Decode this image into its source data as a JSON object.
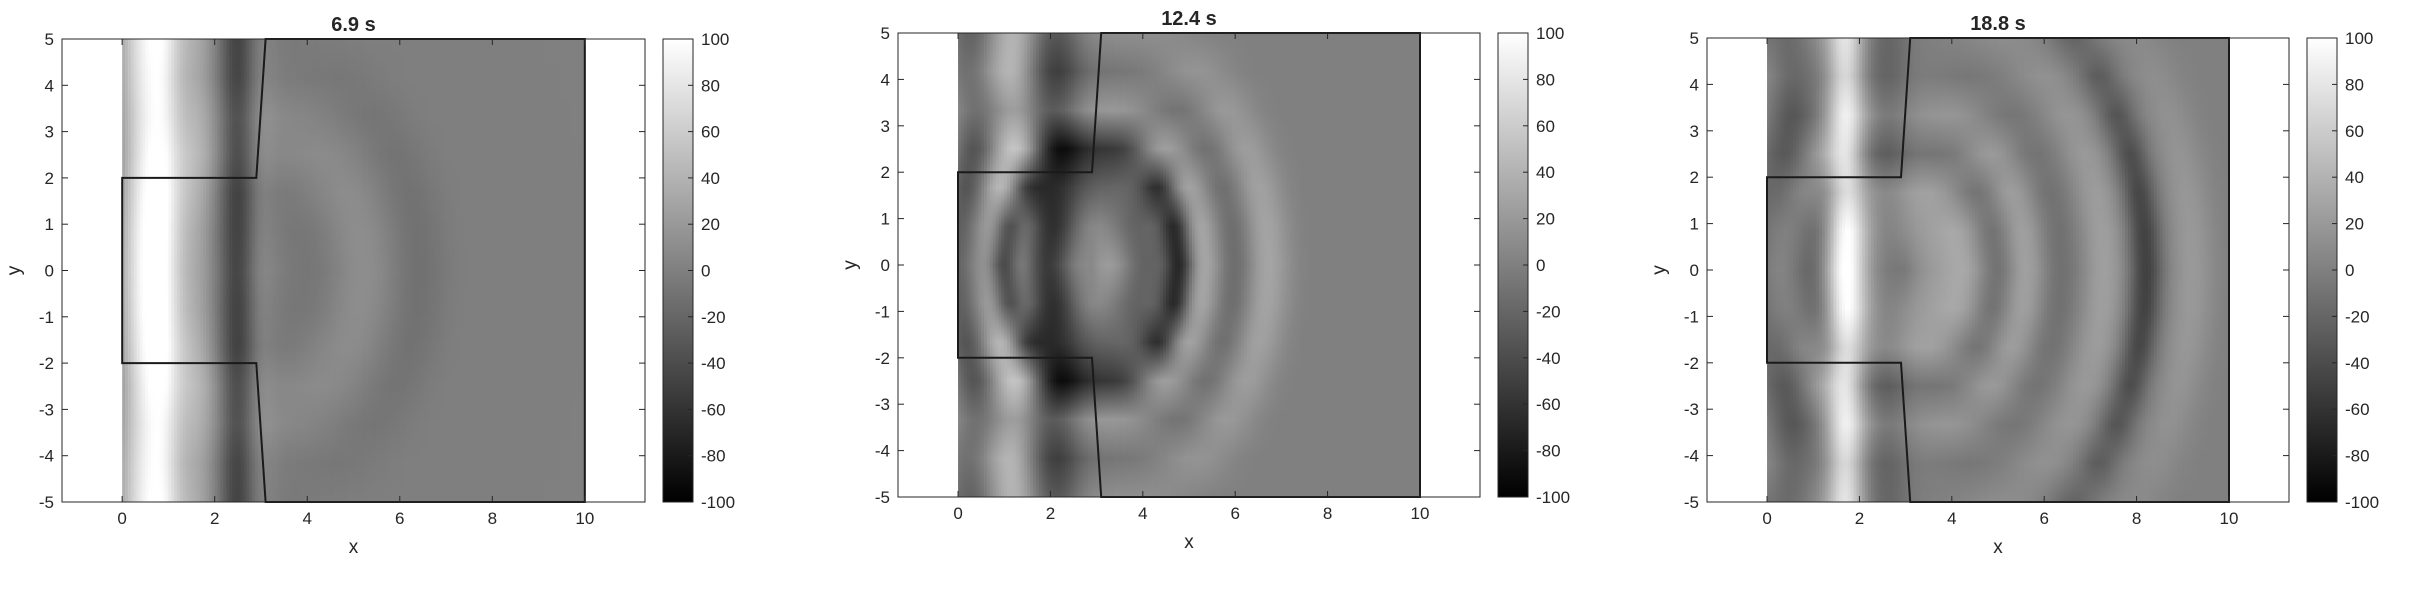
{
  "figure": {
    "colorbar": {
      "colormap": "gray",
      "range": [
        -100,
        100
      ],
      "ticks": [
        100,
        80,
        60,
        40,
        20,
        0,
        -20,
        -40,
        -60,
        -80,
        -100
      ]
    },
    "panels": [
      {
        "title": "6.9 s"
      },
      {
        "title": "12.4 s"
      },
      {
        "title": "18.8 s"
      }
    ]
  },
  "chart_data": [
    {
      "type": "heatmap",
      "title": "6.9 s",
      "xlabel": "x",
      "ylabel": "y",
      "xlim": [
        -1.3,
        11.3
      ],
      "ylim": [
        -5,
        5
      ],
      "xticks": [
        0,
        2,
        4,
        6,
        8,
        10
      ],
      "yticks": [
        5,
        4,
        3,
        2,
        1,
        0,
        -1,
        -2,
        -3,
        -4,
        -5
      ],
      "colormap": "gray",
      "clim": [
        -100,
        100
      ],
      "domain_outline": [
        [
          0,
          -2
        ],
        [
          0,
          2
        ],
        [
          2.9,
          2
        ],
        [
          3.1,
          5
        ],
        [
          10,
          5
        ],
        [
          10,
          -5
        ],
        [
          3.1,
          -5
        ],
        [
          2.9,
          -2
        ]
      ],
      "field_extent_x": [
        0,
        10
      ],
      "background_value": 0,
      "wave_features": [
        {
          "x": 0.35,
          "value": 60,
          "width": 0.32
        },
        {
          "x": 0.85,
          "value": 80,
          "width": 0.3
        },
        {
          "x": 1.55,
          "value": 35,
          "width": 0.35
        },
        {
          "x": 2.5,
          "value": -45,
          "width": 0.28
        },
        {
          "x": 2.95,
          "value": 12,
          "width": 0.25
        },
        {
          "x": 4.1,
          "value": -8,
          "width": 0.5,
          "ring_radius": 1.2
        },
        {
          "x": 5.2,
          "value": 12,
          "width": 0.5,
          "ring_radius": 2.3
        },
        {
          "x": 6.4,
          "value": -12,
          "width": 0.45,
          "ring_radius": 3.5
        }
      ]
    },
    {
      "type": "heatmap",
      "title": "12.4 s",
      "xlabel": "x",
      "ylabel": "y",
      "xlim": [
        -1.3,
        11.3
      ],
      "ylim": [
        -5,
        5
      ],
      "xticks": [
        0,
        2,
        4,
        6,
        8,
        10
      ],
      "yticks": [
        5,
        4,
        3,
        2,
        1,
        0,
        -1,
        -2,
        -3,
        -4,
        -5
      ],
      "colormap": "gray",
      "clim": [
        -100,
        100
      ],
      "domain_outline": [
        [
          0,
          -2
        ],
        [
          0,
          2
        ],
        [
          2.9,
          2
        ],
        [
          3.1,
          5
        ],
        [
          10,
          5
        ],
        [
          10,
          -5
        ],
        [
          3.1,
          -5
        ],
        [
          2.9,
          -2
        ]
      ],
      "field_extent_x": [
        0,
        10
      ],
      "background_value": 0,
      "wave_features": [
        {
          "x": 0.3,
          "value": -25,
          "width": 0.3
        },
        {
          "x": 1.2,
          "value": 35,
          "width": 0.35
        },
        {
          "x": 2.1,
          "value": -45,
          "width": 0.4
        },
        {
          "x": 3.3,
          "value": 25,
          "width": 0.35,
          "ring_radius": 0.4
        },
        {
          "x": 4.0,
          "value": -25,
          "width": 0.35,
          "ring_radius": 1.1
        },
        {
          "x": 4.8,
          "value": -75,
          "width": 0.22,
          "ring_radius": 1.9
        },
        {
          "x": 5.3,
          "value": 35,
          "width": 0.3,
          "ring_radius": 2.4
        },
        {
          "x": 6.0,
          "value": -20,
          "width": 0.3,
          "ring_radius": 3.1
        },
        {
          "x": 6.7,
          "value": 30,
          "width": 0.35,
          "ring_radius": 3.8
        }
      ]
    },
    {
      "type": "heatmap",
      "title": "18.8 s",
      "xlabel": "x",
      "ylabel": "y",
      "xlim": [
        -1.3,
        11.3
      ],
      "ylim": [
        -5,
        5
      ],
      "xticks": [
        0,
        2,
        4,
        6,
        8,
        10
      ],
      "yticks": [
        5,
        4,
        3,
        2,
        1,
        0,
        -1,
        -2,
        -3,
        -4,
        -5
      ],
      "colormap": "gray",
      "clim": [
        -100,
        100
      ],
      "domain_outline": [
        [
          0,
          -2
        ],
        [
          0,
          2
        ],
        [
          2.9,
          2
        ],
        [
          3.1,
          5
        ],
        [
          10,
          5
        ],
        [
          10,
          -5
        ],
        [
          3.1,
          -5
        ],
        [
          2.9,
          -2
        ]
      ],
      "field_extent_x": [
        0,
        10
      ],
      "background_value": 0,
      "wave_features": [
        {
          "x": 0.5,
          "value": -25,
          "width": 0.35
        },
        {
          "x": 1.7,
          "value": 75,
          "width": 0.28
        },
        {
          "x": 2.6,
          "value": -20,
          "width": 0.35
        },
        {
          "x": 3.6,
          "value": 18,
          "width": 0.4,
          "ring_radius": 0.6
        },
        {
          "x": 4.3,
          "value": 28,
          "width": 0.35,
          "ring_radius": 1.3
        },
        {
          "x": 5.0,
          "value": -20,
          "width": 0.3,
          "ring_radius": 2.0
        },
        {
          "x": 5.6,
          "value": 30,
          "width": 0.35,
          "ring_radius": 2.6
        },
        {
          "x": 6.3,
          "value": -15,
          "width": 0.35,
          "ring_radius": 3.3
        },
        {
          "x": 7.3,
          "value": 25,
          "width": 0.35,
          "ring_radius": 4.3
        },
        {
          "x": 8.2,
          "value": -50,
          "width": 0.25,
          "ring_radius": 5.2
        },
        {
          "x": 9.2,
          "value": 20,
          "width": 0.35,
          "ring_radius": 6.2
        }
      ]
    }
  ]
}
